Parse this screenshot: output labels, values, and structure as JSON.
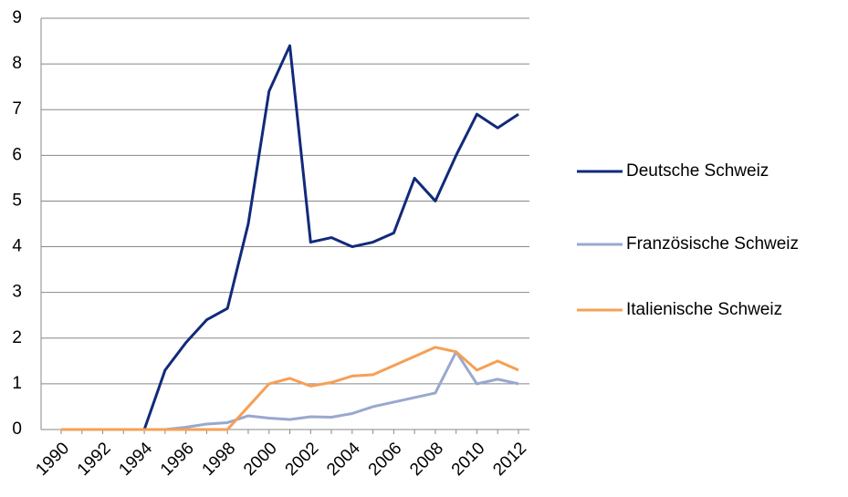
{
  "chart_data": {
    "type": "line",
    "categories": [
      "1990",
      null,
      "1992",
      null,
      "1994",
      null,
      "1996",
      null,
      "1998",
      null,
      "2000",
      null,
      "2002",
      null,
      "2004",
      null,
      "2006",
      null,
      "2008",
      null,
      "2010",
      null,
      "2012"
    ],
    "series": [
      {
        "name": "Deutsche Schweiz",
        "color": "#112a7a",
        "values": [
          0,
          0,
          0,
          0,
          0,
          1.3,
          1.9,
          2.4,
          2.65,
          4.5,
          7.4,
          8.4,
          4.1,
          4.2,
          4.0,
          4.1,
          4.3,
          5.5,
          5.0,
          6.0,
          6.9,
          6.6,
          6.9
        ]
      },
      {
        "name": "Französische Schweiz",
        "color": "#99a8cf",
        "values": [
          0,
          0,
          0,
          0,
          0,
          0,
          0.05,
          0.12,
          0.15,
          0.3,
          0.25,
          0.22,
          0.28,
          0.27,
          0.35,
          0.5,
          0.6,
          0.7,
          0.8,
          1.7,
          1.0,
          1.1,
          1.0
        ]
      },
      {
        "name": "Italienische Schweiz",
        "color": "#f5a055",
        "values": [
          0,
          0,
          0,
          0,
          0,
          0,
          0,
          0,
          0,
          0.5,
          1.0,
          1.12,
          0.95,
          1.03,
          1.17,
          1.2,
          1.4,
          1.6,
          1.8,
          1.7,
          1.3,
          1.5,
          1.3
        ]
      }
    ],
    "ylim": [
      0,
      9
    ],
    "yticks": [
      0,
      1,
      2,
      3,
      4,
      5,
      6,
      7,
      8,
      9
    ],
    "grid": true,
    "legend": "right"
  }
}
